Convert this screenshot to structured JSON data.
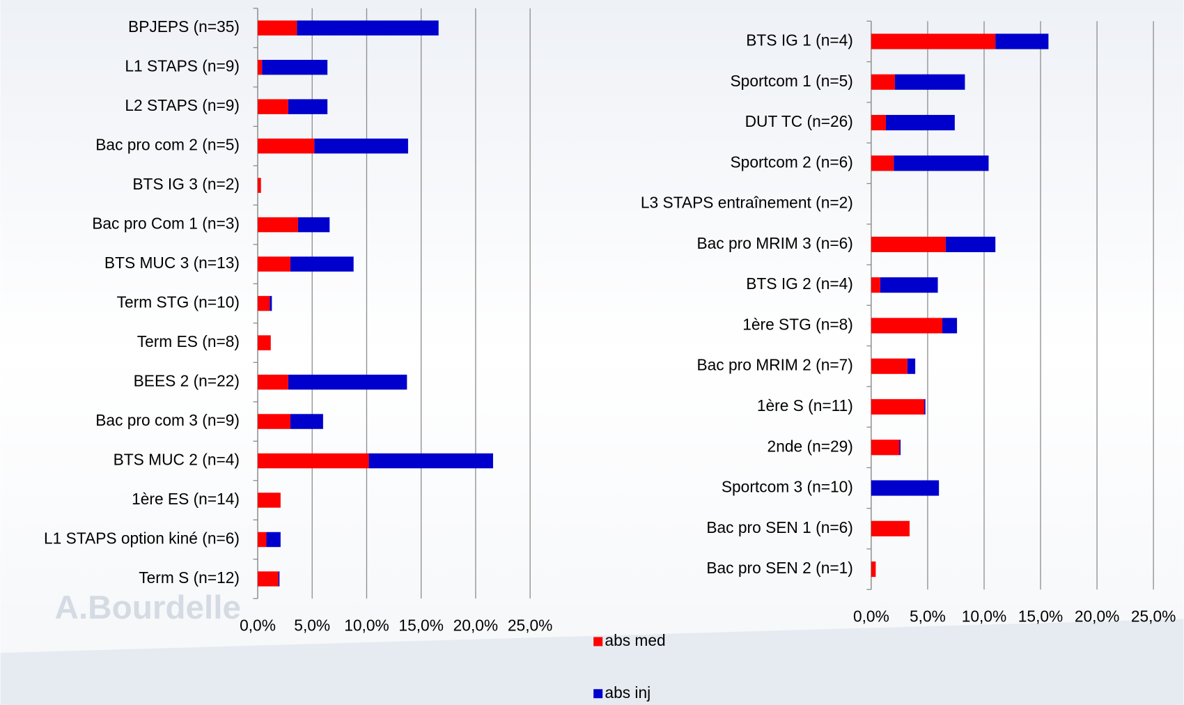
{
  "watermark": "A.Bourdelle",
  "chart_data": [
    {
      "type": "stacked-bar-horizontal",
      "categories": [
        "BPJEPS (n=35)",
        "L1 STAPS (n=9)",
        "L2 STAPS (n=9)",
        "Bac pro com 2 (n=5)",
        "BTS IG 3 (n=2)",
        "Bac pro Com 1 (n=3)",
        "BTS MUC 3 (n=13)",
        "Term STG (n=10)",
        "Term ES (n=8)",
        "BEES 2 (n=22)",
        "Bac pro com 3 (n=9)",
        "BTS MUC 2 (n=4)",
        "1ère ES (n=14)",
        "L1 STAPS option kiné (n=6)",
        "Term S (n=12)"
      ],
      "series": [
        {
          "name": "abs med",
          "color": "#ff0000",
          "values": [
            3.6,
            0.4,
            2.8,
            5.2,
            0.3,
            3.7,
            3.0,
            1.1,
            1.2,
            2.8,
            3.0,
            10.2,
            2.1,
            0.8,
            1.9
          ]
        },
        {
          "name": "abs inj",
          "color": "#0000cc",
          "values": [
            13.0,
            6.0,
            3.6,
            8.6,
            0,
            2.9,
            5.8,
            0.2,
            0,
            10.9,
            3.0,
            11.4,
            0,
            1.3,
            0.1
          ]
        }
      ],
      "xlim": [
        0,
        25
      ],
      "xticks": [
        {
          "value": 0,
          "label": "0,0%"
        },
        {
          "value": 5,
          "label": "5,0%"
        },
        {
          "value": 10,
          "label": "10,0%"
        },
        {
          "value": 15,
          "label": "15,0%"
        },
        {
          "value": 20,
          "label": "20,0%"
        },
        {
          "value": 25,
          "label": "25,0%"
        }
      ],
      "grid": true
    },
    {
      "type": "stacked-bar-horizontal",
      "categories": [
        "BTS IG 1 (n=4)",
        "Sportcom 1 (n=5)",
        "DUT TC (n=26)",
        "Sportcom 2 (n=6)",
        "L3 STAPS entraînement (n=2)",
        "Bac pro MRIM 3 (n=6)",
        "BTS IG 2 (n=4)",
        "1ère STG (n=8)",
        "Bac pro MRIM 2 (n=7)",
        "1ère S (n=11)",
        "2nde (n=29)",
        "Sportcom 3 (n=10)",
        "Bac pro SEN 1 (n=6)",
        "Bac pro SEN 2 (n=1)"
      ],
      "series": [
        {
          "name": "abs med",
          "color": "#ff0000",
          "values": [
            11.0,
            2.1,
            1.3,
            2.0,
            0,
            6.6,
            0.8,
            6.3,
            3.2,
            4.7,
            2.5,
            0,
            3.4,
            0.4
          ]
        },
        {
          "name": "abs inj",
          "color": "#0000cc",
          "values": [
            4.7,
            6.2,
            6.1,
            8.4,
            0,
            4.4,
            5.1,
            1.3,
            0.7,
            0.1,
            0.1,
            6.0,
            0,
            0
          ]
        }
      ],
      "xlim": [
        0,
        25
      ],
      "xticks": [
        {
          "value": 0,
          "label": "0,0%"
        },
        {
          "value": 5,
          "label": "5,0%"
        },
        {
          "value": 10,
          "label": "10,0%"
        },
        {
          "value": 15,
          "label": "15,0%"
        },
        {
          "value": 20,
          "label": "20,0%"
        },
        {
          "value": 25,
          "label": "25,0%"
        }
      ],
      "grid": true
    }
  ]
}
